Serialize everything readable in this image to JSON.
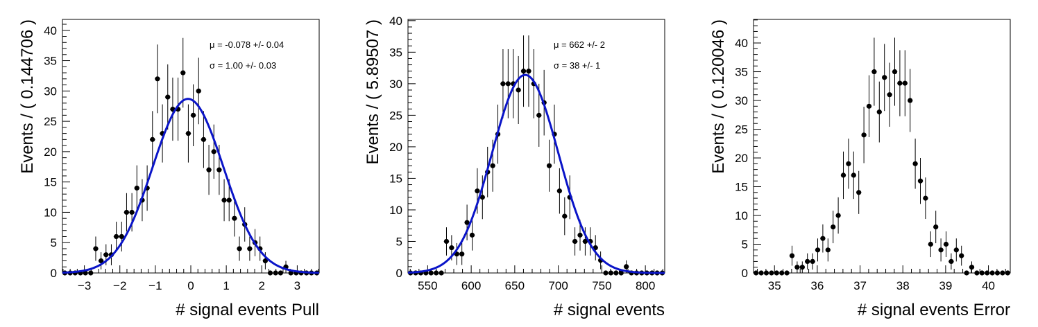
{
  "chart_data": [
    {
      "type": "scatter",
      "title": "",
      "xlabel": "# signal events Pull",
      "ylabel": "Events / ( 0.144706 )",
      "xlim": [
        -3.618,
        3.618
      ],
      "ylim": [
        0,
        41.8
      ],
      "xticks": [
        -3,
        -2,
        -1,
        0,
        1,
        2,
        3
      ],
      "xtick_labels": [
        "−3",
        "−2",
        "−1",
        "0",
        "1",
        "2",
        "3"
      ],
      "yticks": [
        0,
        5,
        10,
        15,
        20,
        25,
        30,
        35,
        40
      ],
      "ytick_labels": [
        "0",
        "5",
        "10",
        "15",
        "20",
        "25",
        "30",
        "35",
        "40"
      ],
      "series": [
        {
          "name": "data",
          "x": [
            -3.55,
            -3.4,
            -3.26,
            -3.11,
            -2.97,
            -2.82,
            -2.68,
            -2.53,
            -2.39,
            -2.24,
            -2.1,
            -1.95,
            -1.81,
            -1.66,
            -1.52,
            -1.37,
            -1.23,
            -1.08,
            -0.94,
            -0.8,
            -0.65,
            -0.51,
            -0.36,
            -0.22,
            -0.07,
            0.07,
            0.22,
            0.36,
            0.51,
            0.65,
            0.8,
            0.94,
            1.08,
            1.23,
            1.37,
            1.52,
            1.66,
            1.81,
            1.95,
            2.1,
            2.24,
            2.39,
            2.53,
            2.68,
            2.82,
            2.97,
            3.11,
            3.26,
            3.4,
            3.55
          ],
          "y": [
            0,
            0,
            0,
            0,
            0,
            0,
            4,
            2,
            3,
            3,
            6,
            6,
            10,
            10,
            14,
            12,
            14,
            22,
            32,
            23,
            29,
            27,
            27,
            33,
            23,
            26,
            30,
            22,
            17,
            20,
            17,
            12,
            12,
            9,
            4,
            8,
            4,
            5,
            4,
            2,
            0,
            0,
            0,
            1,
            0,
            0,
            0,
            0,
            0,
            0
          ]
        },
        {
          "name": "gaussian fit",
          "mean": -0.078,
          "sigma": 1.0,
          "peak": 28.7
        }
      ],
      "annotations": [
        "μ = -0.078 +/- 0.04",
        "σ =  1.00 +/- 0.03"
      ]
    },
    {
      "type": "scatter",
      "title": "",
      "xlabel": "# signal events",
      "ylabel": "Events / ( 5.89507 )",
      "xlim": [
        527.4,
        822.2
      ],
      "ylim": [
        0,
        40.2
      ],
      "xticks": [
        550,
        600,
        650,
        700,
        750,
        800
      ],
      "xtick_labels": [
        "550",
        "600",
        "650",
        "700",
        "750",
        "800"
      ],
      "yticks": [
        0,
        5,
        10,
        15,
        20,
        25,
        30,
        35,
        40
      ],
      "ytick_labels": [
        "0",
        "5",
        "10",
        "15",
        "20",
        "25",
        "30",
        "35",
        "40"
      ],
      "series": [
        {
          "name": "data",
          "x": [
            530.3,
            536.2,
            542.1,
            548.0,
            553.9,
            559.8,
            565.7,
            571.6,
            577.5,
            583.4,
            589.3,
            595.2,
            601.1,
            607.0,
            612.9,
            618.8,
            624.7,
            630.6,
            636.5,
            642.4,
            648.3,
            654.2,
            660.1,
            666.0,
            671.9,
            677.8,
            683.7,
            689.6,
            695.5,
            701.4,
            707.3,
            713.2,
            719.1,
            725.0,
            730.9,
            736.8,
            742.7,
            748.6,
            754.5,
            760.4,
            766.3,
            772.2,
            778.1,
            784.0,
            789.9,
            795.8,
            801.7,
            807.6,
            813.5,
            819.4
          ],
          "y": [
            0,
            0,
            0,
            0,
            0,
            0,
            0,
            5,
            4,
            3,
            3,
            8,
            6,
            13,
            12,
            16,
            17,
            22,
            30,
            30,
            30,
            29,
            32,
            32,
            30,
            25,
            27,
            17,
            22,
            13,
            9,
            12,
            5,
            6,
            5,
            5,
            4,
            2,
            0,
            0,
            0,
            0,
            1,
            0,
            0,
            0,
            0,
            0,
            0,
            0
          ]
        },
        {
          "name": "gaussian fit",
          "mean": 662,
          "sigma": 38,
          "peak": 31.4
        }
      ],
      "annotations": [
        "μ =  662 +/- 2",
        "σ =  38 +/- 1"
      ]
    },
    {
      "type": "scatter",
      "title": "",
      "xlabel": "# signal events Error",
      "ylabel": "Events / ( 0.120046 )",
      "xlim": [
        34.51,
        40.51
      ],
      "ylim": [
        0,
        44.1
      ],
      "xticks": [
        35,
        36,
        37,
        38,
        39,
        40
      ],
      "xtick_labels": [
        "35",
        "36",
        "37",
        "38",
        "39",
        "40"
      ],
      "yticks": [
        0,
        5,
        10,
        15,
        20,
        25,
        30,
        35,
        40
      ],
      "ytick_labels": [
        "0",
        "5",
        "10",
        "15",
        "20",
        "25",
        "30",
        "35",
        "40"
      ],
      "series": [
        {
          "name": "data",
          "x": [
            34.57,
            34.69,
            34.81,
            34.93,
            35.05,
            35.17,
            35.29,
            35.41,
            35.53,
            35.65,
            35.77,
            35.89,
            36.01,
            36.13,
            36.25,
            36.37,
            36.49,
            36.61,
            36.73,
            36.85,
            36.97,
            37.09,
            37.21,
            37.33,
            37.45,
            37.57,
            37.69,
            37.81,
            37.93,
            38.05,
            38.17,
            38.29,
            38.41,
            38.53,
            38.65,
            38.77,
            38.89,
            39.01,
            39.13,
            39.25,
            39.37,
            39.49,
            39.61,
            39.73,
            39.85,
            39.97,
            40.09,
            40.21,
            40.33,
            40.45
          ],
          "y": [
            0,
            0,
            0,
            0,
            0,
            0,
            0,
            3,
            1,
            1,
            2,
            2,
            4,
            6,
            4,
            8,
            10,
            17,
            19,
            17,
            14,
            24,
            29,
            35,
            28,
            34,
            31,
            35,
            33,
            33,
            30,
            19,
            16,
            13,
            5,
            8,
            4,
            5,
            2,
            4,
            3,
            0,
            1,
            0,
            0,
            0,
            0,
            0,
            0,
            0
          ]
        }
      ],
      "annotations": []
    }
  ]
}
